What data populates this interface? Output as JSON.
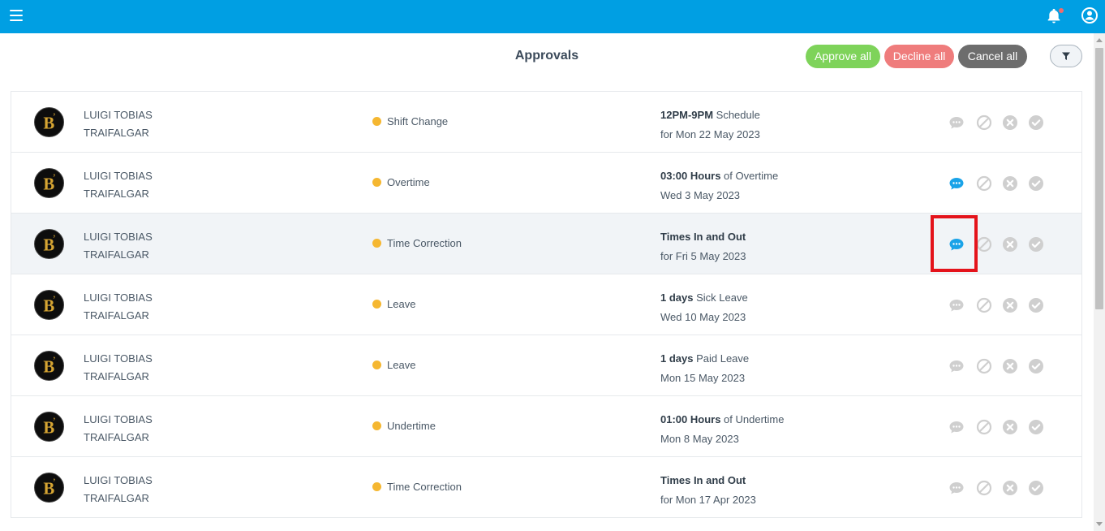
{
  "topbar": {
    "color": "#009fe3",
    "icons": [
      "menu-icon",
      "bell-icon",
      "user-icon"
    ],
    "has_notification": true
  },
  "page": {
    "title": "Approvals"
  },
  "toolbar": {
    "approve_all": "Approve all",
    "decline_all": "Decline all",
    "cancel_all": "Cancel all",
    "filter_icon": "filter-icon"
  },
  "colors": {
    "approve": "#7ed35a",
    "decline": "#ef7c7c",
    "cancel": "#6d6d6d",
    "status_dot": "#f5b731",
    "comment_active": "#1aa3e8",
    "action_inactive": "#cfcfcf",
    "highlight_box": "#e4131b"
  },
  "requests": [
    {
      "first_name": "LUIGI TOBIAS",
      "last_name": "TRAIFALGAR",
      "type": "Shift Change",
      "detail_bold": "12PM-9PM",
      "detail_rest": " Schedule",
      "date": "for Mon 22 May 2023",
      "has_comment": false
    },
    {
      "first_name": "LUIGI TOBIAS",
      "last_name": "TRAIFALGAR",
      "type": "Overtime",
      "detail_bold": "03:00 Hours",
      "detail_rest": " of Overtime",
      "date": "Wed 3 May 2023",
      "has_comment": true
    },
    {
      "first_name": "LUIGI TOBIAS",
      "last_name": "TRAIFALGAR",
      "type": "Time Correction",
      "detail_bold": "Times In and Out",
      "detail_rest": "",
      "date": "for Fri 5 May 2023",
      "has_comment": true,
      "highlighted": true
    },
    {
      "first_name": "LUIGI TOBIAS",
      "last_name": "TRAIFALGAR",
      "type": "Leave",
      "detail_bold": "1 days",
      "detail_rest": " Sick Leave",
      "date": "Wed 10 May 2023",
      "has_comment": false
    },
    {
      "first_name": "LUIGI TOBIAS",
      "last_name": "TRAIFALGAR",
      "type": "Leave",
      "detail_bold": "1 days",
      "detail_rest": " Paid Leave",
      "date": "Mon 15 May 2023",
      "has_comment": false
    },
    {
      "first_name": "LUIGI TOBIAS",
      "last_name": "TRAIFALGAR",
      "type": "Undertime",
      "detail_bold": "01:00 Hours",
      "detail_rest": " of Undertime",
      "date": "Mon 8 May 2023",
      "has_comment": false
    },
    {
      "first_name": "LUIGI TOBIAS",
      "last_name": "TRAIFALGAR",
      "type": "Time Correction",
      "detail_bold": "Times In and Out",
      "detail_rest": "",
      "date": "for Mon 17 Apr 2023",
      "has_comment": false
    }
  ],
  "row_actions": [
    "comment-icon",
    "block-icon",
    "decline-icon",
    "approve-icon"
  ]
}
